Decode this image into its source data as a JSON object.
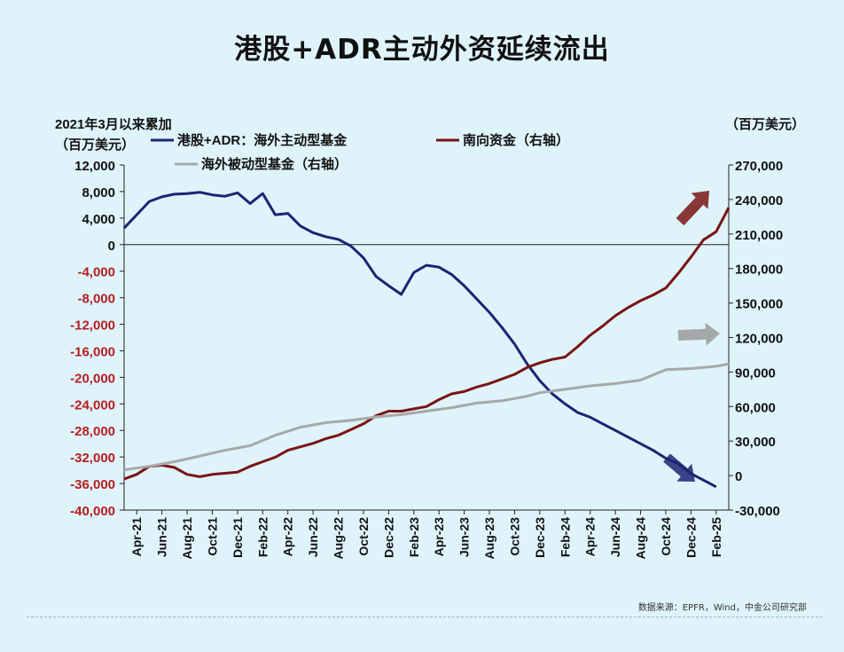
{
  "page": {
    "title": "港股+ADR主动外资延续流出",
    "source": "数据来源：EPFR，Wind，中金公司研究部"
  },
  "chart_data": {
    "type": "line",
    "title": "港股+ADR主动外资延续流出",
    "left_axis": {
      "header1": "2021年3月以来累加",
      "header2": "（百万美元）",
      "ylim": [
        -40000,
        12000
      ],
      "ticks": [
        12000,
        8000,
        4000,
        0,
        -4000,
        -8000,
        -12000,
        -16000,
        -20000,
        -24000,
        -28000,
        -32000,
        -36000,
        -40000
      ],
      "tick_labels": [
        "12,000",
        "8,000",
        "4,000",
        "0",
        "-4,000",
        "-8,000",
        "-12,000",
        "-16,000",
        "-20,000",
        "-24,000",
        "-28,000",
        "-32,000",
        "-36,000",
        "-40,000"
      ]
    },
    "right_axis": {
      "header": "（百万美元）",
      "ylim": [
        -30000,
        270000
      ],
      "tick_labels": [
        "270,000",
        "240,000",
        "210,000",
        "180,000",
        "150,000",
        "120,000",
        "90,000",
        "60,000",
        "30,000",
        "0",
        "-30,000"
      ]
    },
    "x_tick_labels": [
      "Apr-21",
      "Jun-21",
      "Aug-21",
      "Oct-21",
      "Dec-21",
      "Feb-22",
      "Apr-22",
      "Jun-22",
      "Aug-22",
      "Oct-22",
      "Dec-22",
      "Feb-23",
      "Apr-23",
      "Jun-23",
      "Aug-23",
      "Oct-23",
      "Dec-23",
      "Feb-24",
      "Apr-24",
      "Jun-24",
      "Aug-24",
      "Oct-24",
      "Dec-24",
      "Feb-25"
    ],
    "x_range": [
      "2021-03",
      "2025-03"
    ],
    "series": [
      {
        "name": "港股+ADR：海外主动型基金",
        "axis": "left",
        "color": "#1c2473",
        "points": [
          [
            "2021-03",
            2500
          ],
          [
            "2021-04",
            4500
          ],
          [
            "2021-05",
            6500
          ],
          [
            "2021-06",
            7200
          ],
          [
            "2021-07",
            7600
          ],
          [
            "2021-08",
            7700
          ],
          [
            "2021-09",
            7900
          ],
          [
            "2021-10",
            7500
          ],
          [
            "2021-11",
            7300
          ],
          [
            "2021-12",
            7800
          ],
          [
            "2022-01",
            6200
          ],
          [
            "2022-02",
            7700
          ],
          [
            "2022-03",
            4500
          ],
          [
            "2022-04",
            4700
          ],
          [
            "2022-05",
            2800
          ],
          [
            "2022-06",
            1800
          ],
          [
            "2022-07",
            1200
          ],
          [
            "2022-08",
            800
          ],
          [
            "2022-09",
            -200
          ],
          [
            "2022-10",
            -2000
          ],
          [
            "2022-11",
            -4800
          ],
          [
            "2022-12",
            -6200
          ],
          [
            "2023-01",
            -7500
          ],
          [
            "2023-02",
            -4200
          ],
          [
            "2023-03",
            -3100
          ],
          [
            "2023-04",
            -3400
          ],
          [
            "2023-05",
            -4500
          ],
          [
            "2023-06",
            -6200
          ],
          [
            "2023-07",
            -8200
          ],
          [
            "2023-08",
            -10200
          ],
          [
            "2023-09",
            -12500
          ],
          [
            "2023-10",
            -15000
          ],
          [
            "2023-11",
            -18000
          ],
          [
            "2023-12",
            -20500
          ],
          [
            "2024-01",
            -22500
          ],
          [
            "2024-02",
            -24000
          ],
          [
            "2024-03",
            -25300
          ],
          [
            "2024-04",
            -26000
          ],
          [
            "2024-05",
            -27000
          ],
          [
            "2024-06",
            -28000
          ],
          [
            "2024-07",
            -29000
          ],
          [
            "2024-08",
            -30000
          ],
          [
            "2024-09",
            -31000
          ],
          [
            "2024-10",
            -32200
          ],
          [
            "2024-11",
            -33000
          ],
          [
            "2024-12",
            -34500
          ],
          [
            "2025-01",
            -35500
          ],
          [
            "2025-02",
            -36500
          ]
        ]
      },
      {
        "name": "南向资金（右轴）",
        "axis": "right",
        "color": "#7a1414",
        "points": [
          [
            "2021-03",
            -3000
          ],
          [
            "2021-04",
            1000
          ],
          [
            "2021-05",
            8000
          ],
          [
            "2021-06",
            9000
          ],
          [
            "2021-07",
            7000
          ],
          [
            "2021-08",
            1000
          ],
          [
            "2021-09",
            -1000
          ],
          [
            "2021-10",
            1000
          ],
          [
            "2021-11",
            2000
          ],
          [
            "2021-12",
            3000
          ],
          [
            "2022-01",
            8000
          ],
          [
            "2022-02",
            12000
          ],
          [
            "2022-03",
            16000
          ],
          [
            "2022-04",
            22000
          ],
          [
            "2022-05",
            25000
          ],
          [
            "2022-06",
            28000
          ],
          [
            "2022-07",
            32000
          ],
          [
            "2022-08",
            35000
          ],
          [
            "2022-09",
            40000
          ],
          [
            "2022-10",
            45000
          ],
          [
            "2022-11",
            52000
          ],
          [
            "2022-12",
            56000
          ],
          [
            "2023-01",
            56000
          ],
          [
            "2023-02",
            58000
          ],
          [
            "2023-03",
            60000
          ],
          [
            "2023-04",
            66000
          ],
          [
            "2023-05",
            71000
          ],
          [
            "2023-06",
            73000
          ],
          [
            "2023-07",
            77000
          ],
          [
            "2023-08",
            80000
          ],
          [
            "2023-09",
            84000
          ],
          [
            "2023-10",
            88000
          ],
          [
            "2023-11",
            94000
          ],
          [
            "2023-12",
            98000
          ],
          [
            "2024-01",
            101000
          ],
          [
            "2024-02",
            103000
          ],
          [
            "2024-03",
            112000
          ],
          [
            "2024-04",
            122000
          ],
          [
            "2024-05",
            130000
          ],
          [
            "2024-06",
            139000
          ],
          [
            "2024-07",
            146000
          ],
          [
            "2024-08",
            152000
          ],
          [
            "2024-09",
            157000
          ],
          [
            "2024-10",
            163000
          ],
          [
            "2024-11",
            176000
          ],
          [
            "2024-12",
            190000
          ],
          [
            "2025-01",
            205000
          ],
          [
            "2025-02",
            212000
          ],
          [
            "2025-03",
            233000
          ]
        ]
      },
      {
        "name": "海外被动型基金（右轴）",
        "axis": "right",
        "color": "#a8a8a8",
        "points": [
          [
            "2021-03",
            5000
          ],
          [
            "2021-05",
            8000
          ],
          [
            "2021-07",
            12000
          ],
          [
            "2021-09",
            17000
          ],
          [
            "2021-11",
            22000
          ],
          [
            "2022-01",
            26000
          ],
          [
            "2022-03",
            35000
          ],
          [
            "2022-05",
            42000
          ],
          [
            "2022-07",
            46000
          ],
          [
            "2022-09",
            48000
          ],
          [
            "2022-11",
            51000
          ],
          [
            "2023-01",
            53000
          ],
          [
            "2023-03",
            56000
          ],
          [
            "2023-05",
            59000
          ],
          [
            "2023-07",
            63000
          ],
          [
            "2023-09",
            65000
          ],
          [
            "2023-11",
            69000
          ],
          [
            "2023-12",
            72000
          ],
          [
            "2024-02",
            75000
          ],
          [
            "2024-04",
            78000
          ],
          [
            "2024-06",
            80000
          ],
          [
            "2024-08",
            83000
          ],
          [
            "2024-10",
            92000
          ],
          [
            "2024-12",
            93000
          ],
          [
            "2025-02",
            95000
          ],
          [
            "2025-03",
            97000
          ]
        ]
      }
    ],
    "legend": [
      "港股+ADR：海外主动型基金",
      "南向资金（右轴）",
      "海外被动型基金（右轴）"
    ],
    "legend_position": "top"
  }
}
